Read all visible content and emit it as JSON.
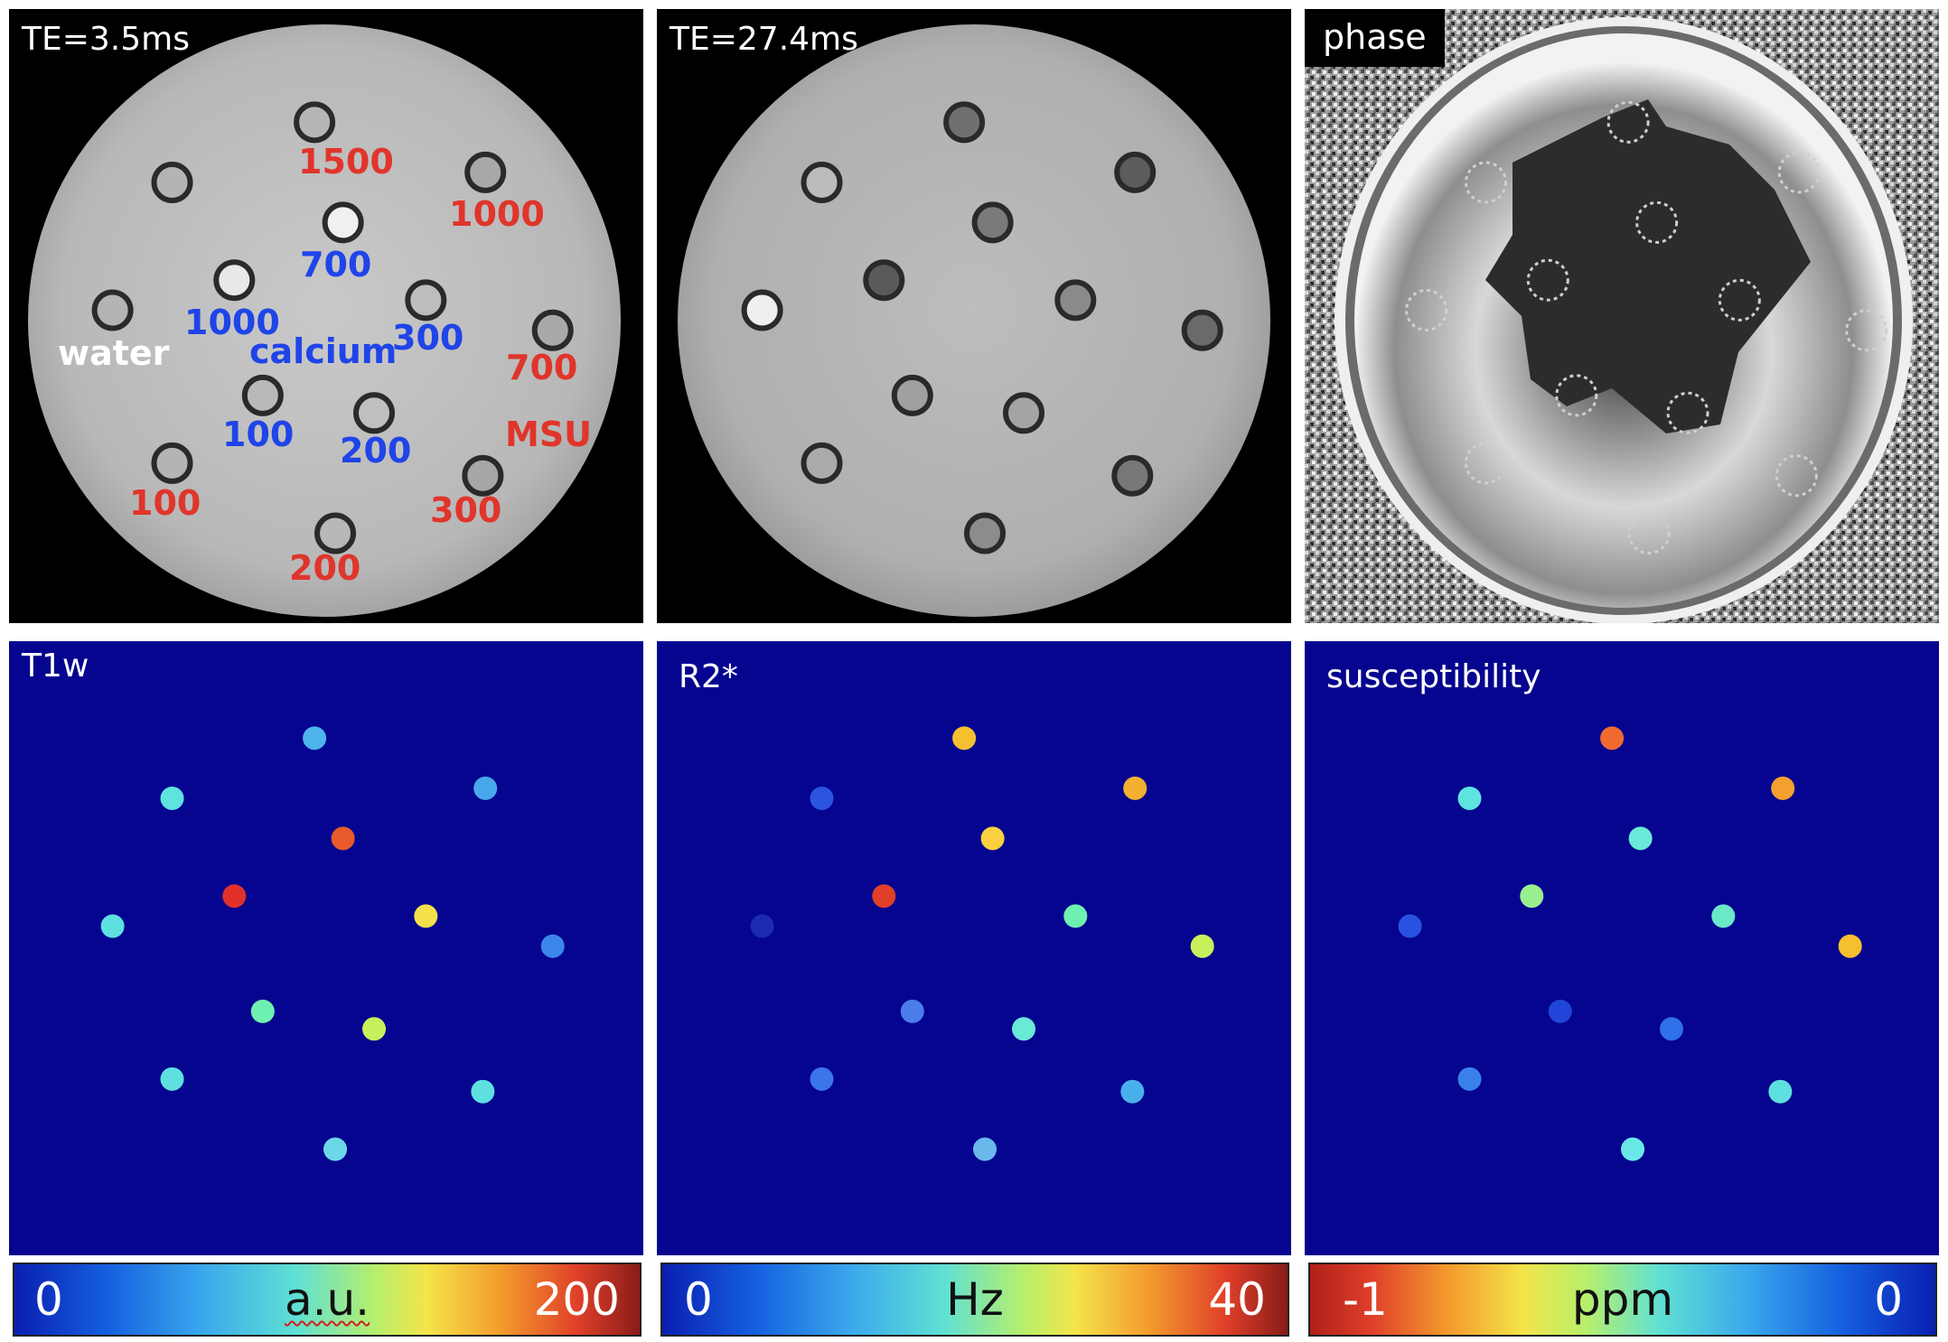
{
  "panels": {
    "te1": {
      "label": "TE=3.5ms"
    },
    "te2": {
      "label": "TE=27.4ms"
    },
    "phase": {
      "label": "phase"
    },
    "t1w": {
      "label": "T1w"
    },
    "r2": {
      "label": "R2*"
    },
    "sus": {
      "label": "susceptibility"
    }
  },
  "annotations": {
    "msu_1500": "1500",
    "msu_1000": "1000",
    "msu_700": "700",
    "msu_label": "MSU",
    "msu_300": "300",
    "msu_200": "200",
    "msu_100": "100",
    "ca_700": "700",
    "ca_1000": "1000",
    "ca_300": "300",
    "ca_label": "calcium",
    "ca_100": "100",
    "ca_200": "200",
    "water": "water"
  },
  "colorbars": {
    "t1w": {
      "min": "0",
      "unit": "a.u.",
      "max": "200"
    },
    "r2": {
      "min": "0",
      "unit": "Hz",
      "max": "40"
    },
    "sus": {
      "min": "-1",
      "unit": "ppm",
      "max": "0"
    }
  },
  "colors": {
    "msu_text": "#e0352b",
    "calcium_text": "#1f44e8",
    "map_background": "#05058f"
  }
}
